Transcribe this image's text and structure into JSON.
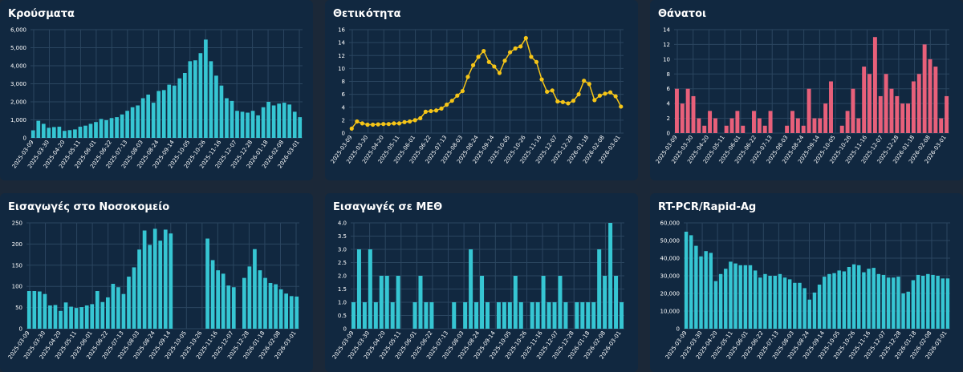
{
  "chart_data": [
    {
      "type": "bar",
      "title": "Κρούσματα",
      "color": "#36c6d3",
      "ylim": [
        0,
        6000
      ],
      "yticks": [
        0,
        1000,
        2000,
        3000,
        4000,
        5000,
        6000
      ],
      "ytick_labels": [
        "0",
        "1,000",
        "2,000",
        "3,000",
        "4,000",
        "5,000",
        "6,000"
      ],
      "xtick_labels": [
        "2025-03-09",
        "2025-03-30",
        "2025-04-20",
        "2025-05-11",
        "2025-06-01",
        "2025-06-22",
        "2025-07-13",
        "2025-08-03",
        "2025-08-24",
        "2025-09-14",
        "2025-10-05",
        "2025-10-26",
        "2025-11-16",
        "2025-12-07",
        "2025-12-28",
        "2026-01-18",
        "2026-02-08",
        "2026-03-01"
      ],
      "grid": true,
      "values": [
        420,
        950,
        780,
        560,
        600,
        620,
        390,
        430,
        470,
        620,
        680,
        780,
        880,
        1050,
        980,
        1100,
        1150,
        1300,
        1500,
        1700,
        1800,
        2200,
        2400,
        1950,
        2600,
        2650,
        2950,
        2900,
        3300,
        3600,
        4250,
        4300,
        4700,
        5450,
        4250,
        3450,
        2900,
        2200,
        2050,
        1500,
        1450,
        1400,
        1500,
        1250,
        1700,
        2000,
        1800,
        1900,
        1950,
        1850,
        1450,
        1150
      ]
    },
    {
      "type": "line",
      "title": "Θετικότητα",
      "color": "#f5c518",
      "ylim": [
        0,
        16
      ],
      "yticks": [
        0,
        2,
        4,
        6,
        8,
        10,
        12,
        14,
        16
      ],
      "ytick_labels": [
        "0",
        "2",
        "4",
        "6",
        "8",
        "10",
        "12",
        "14",
        "16"
      ],
      "xtick_labels": [
        "2025-03-09",
        "2025-03-30",
        "2025-04-20",
        "2025-05-11",
        "2025-06-01",
        "2025-06-22",
        "2025-07-13",
        "2025-08-03",
        "2025-08-24",
        "2025-09-14",
        "2025-10-05",
        "2025-10-26",
        "2025-11-16",
        "2025-12-07",
        "2025-12-28",
        "2026-01-18",
        "2026-02-08",
        "2026-03-01"
      ],
      "grid": true,
      "values": [
        0.7,
        1.8,
        1.5,
        1.3,
        1.3,
        1.35,
        1.4,
        1.4,
        1.5,
        1.5,
        1.7,
        1.8,
        2.0,
        2.3,
        3.3,
        3.4,
        3.5,
        3.8,
        4.4,
        5.0,
        5.8,
        6.5,
        8.7,
        10.5,
        11.8,
        12.7,
        11.0,
        10.3,
        9.3,
        11.2,
        12.5,
        13.1,
        13.4,
        14.7,
        11.8,
        11.0,
        8.3,
        6.4,
        6.6,
        4.9,
        4.8,
        4.6,
        5.0,
        6.0,
        8.1,
        7.6,
        5.1,
        5.8,
        6.1,
        6.3,
        5.7,
        4.1
      ]
    },
    {
      "type": "bar",
      "title": "Θάνατοι",
      "color": "#e8607a",
      "ylim": [
        0,
        14
      ],
      "yticks": [
        0,
        2,
        4,
        6,
        8,
        10,
        12,
        14
      ],
      "ytick_labels": [
        "0",
        "2",
        "4",
        "6",
        "8",
        "10",
        "12",
        "14"
      ],
      "xtick_labels": [
        "2025-03-09",
        "2025-03-30",
        "2025-04-20",
        "2025-05-11",
        "2025-06-01",
        "2025-06-22",
        "2025-07-13",
        "2025-08-03",
        "2025-08-24",
        "2025-09-14",
        "2025-10-05",
        "2025-10-26",
        "2025-11-16",
        "2025-12-07",
        "2025-12-28",
        "2026-01-18",
        "2026-02-08",
        "2026-03-01"
      ],
      "grid": true,
      "values": [
        6,
        4,
        6,
        5,
        2,
        1,
        3,
        2,
        0,
        1,
        2,
        3,
        1,
        0,
        3,
        2,
        1,
        3,
        0,
        0,
        1,
        3,
        2,
        1,
        6,
        2,
        2,
        4,
        7,
        0,
        1,
        3,
        6,
        2,
        9,
        8,
        13,
        5,
        8,
        6,
        5,
        4,
        4,
        7,
        8,
        12,
        10,
        9,
        2,
        5
      ]
    },
    {
      "type": "bar",
      "title": "Εισαγωγές στο Νοσοκομείο",
      "color": "#36c6d3",
      "ylim": [
        0,
        250
      ],
      "yticks": [
        0,
        50,
        100,
        150,
        200,
        250
      ],
      "ytick_labels": [
        "0",
        "50",
        "100",
        "150",
        "200",
        "250"
      ],
      "xtick_labels": [
        "2025-03-09",
        "2025-03-30",
        "2025-04-20",
        "2025-05-11",
        "2025-06-01",
        "2025-06-22",
        "2025-07-13",
        "2025-08-03",
        "2025-08-24",
        "2025-09-14",
        "2025-10-05",
        "2025-10-26",
        "2025-11-16",
        "2025-12-07",
        "2025-12-28",
        "2026-01-18",
        "2026-02-08",
        "2026-03-01"
      ],
      "grid": true,
      "values": [
        89,
        89,
        88,
        82,
        55,
        56,
        42,
        62,
        52,
        49,
        51,
        55,
        58,
        89,
        63,
        74,
        106,
        98,
        82,
        123,
        145,
        187,
        232,
        198,
        236,
        208,
        234,
        225,
        0,
        0,
        0,
        0,
        0,
        0,
        213,
        162,
        138,
        130,
        102,
        98,
        0,
        120,
        147,
        188,
        138,
        120,
        108,
        105,
        93,
        83,
        77,
        76
      ]
    },
    {
      "type": "bar",
      "title": "Εισαγωγές σε ΜΕΘ",
      "color": "#36c6d3",
      "ylim": [
        0,
        4
      ],
      "yticks": [
        0,
        0.5,
        1,
        1.5,
        2,
        2.5,
        3,
        3.5,
        4
      ],
      "ytick_labels": [
        "0",
        "0.5",
        "1.0",
        "1.5",
        "2.0",
        "2.5",
        "3.0",
        "3.5",
        "4.0"
      ],
      "xtick_labels": [
        "2025-03-09",
        "2025-03-30",
        "2025-04-20",
        "2025-05-11",
        "2025-06-01",
        "2025-06-22",
        "2025-07-13",
        "2025-08-03",
        "2025-08-24",
        "2025-09-14",
        "2025-10-05",
        "2025-10-26",
        "2025-11-16",
        "2025-12-07",
        "2025-12-28",
        "2026-01-18",
        "2026-02-08",
        "2026-03-01"
      ],
      "grid": true,
      "values": [
        1,
        3,
        1,
        3,
        1,
        2,
        2,
        1,
        2,
        0,
        0,
        1,
        2,
        1,
        1,
        0,
        0,
        0,
        1,
        0,
        1,
        3,
        1,
        2,
        1,
        0,
        1,
        1,
        1,
        2,
        1,
        0,
        1,
        1,
        2,
        1,
        1,
        2,
        1,
        0,
        1,
        1,
        1,
        1,
        3,
        2,
        4,
        2,
        1
      ]
    },
    {
      "type": "bar",
      "title": "RT-PCR/Rapid-Ag",
      "color": "#36c6d3",
      "ylim": [
        0,
        60000
      ],
      "yticks": [
        0,
        10000,
        20000,
        30000,
        40000,
        50000,
        60000
      ],
      "ytick_labels": [
        "0",
        "10,000",
        "20,000",
        "30,000",
        "40,000",
        "50,000",
        "60,000"
      ],
      "xtick_labels": [
        "2025-03-09",
        "2025-03-30",
        "2025-04-20",
        "2025-05-11",
        "2025-06-01",
        "2025-06-22",
        "2025-07-13",
        "2025-08-03",
        "2025-08-24",
        "2025-09-14",
        "2025-10-05",
        "2025-10-26",
        "2025-11-16",
        "2025-12-07",
        "2025-12-28",
        "2026-01-18",
        "2026-02-08",
        "2026-03-01"
      ],
      "grid": true,
      "values": [
        55000,
        53000,
        47000,
        41000,
        44000,
        43000,
        27000,
        31000,
        34000,
        38000,
        37000,
        36000,
        36000,
        36000,
        33000,
        29000,
        31000,
        30000,
        30000,
        31000,
        29000,
        28000,
        26000,
        26000,
        23000,
        16500,
        20500,
        25000,
        29500,
        31000,
        31500,
        33000,
        32500,
        35000,
        36500,
        36000,
        32000,
        34000,
        34500,
        31000,
        30500,
        29000,
        29000,
        29500,
        20000,
        21000,
        27500,
        30500,
        30000,
        31000,
        30500,
        30000,
        28500,
        28500
      ]
    }
  ]
}
